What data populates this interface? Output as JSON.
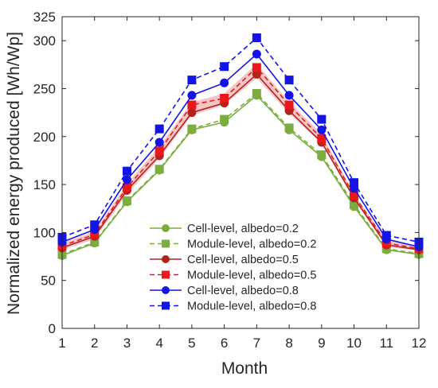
{
  "chart_data": {
    "type": "line",
    "title": "",
    "xlabel": "Month",
    "ylabel": "Normalized energy produced [Wh/Wp]",
    "x": [
      1,
      2,
      3,
      4,
      5,
      6,
      7,
      8,
      9,
      10,
      11,
      12
    ],
    "xlim": [
      1,
      12
    ],
    "ylim": [
      0,
      325
    ],
    "yticks": [
      0,
      50,
      100,
      150,
      200,
      250,
      300,
      325
    ],
    "grid": false,
    "legend_position": "bottom-right",
    "band": {
      "color": "#f4c7c7",
      "lower": [
        82,
        93,
        140,
        177,
        222,
        233,
        261,
        224,
        193,
        134,
        85,
        81
      ],
      "upper": [
        89,
        101,
        151,
        190,
        236,
        245,
        276,
        236,
        203,
        140,
        92,
        85
      ]
    },
    "series": [
      {
        "name": "Cell-level, albedo=0.2",
        "color": "#7cad3f",
        "line": "solid",
        "marker": "circle",
        "values": [
          76,
          89,
          132,
          165,
          207,
          215,
          243,
          207,
          179,
          127,
          82,
          77
        ]
      },
      {
        "name": "Module-level, albedo=0.2",
        "color": "#7cad3f",
        "line": "dashed",
        "marker": "square",
        "values": [
          77,
          90,
          133,
          166,
          208,
          218,
          245,
          209,
          181,
          129,
          83,
          78
        ]
      },
      {
        "name": "Cell-level, albedo=0.5",
        "color": "#b4221e",
        "line": "solid",
        "marker": "circle",
        "values": [
          84,
          96,
          144,
          180,
          225,
          235,
          265,
          227,
          194,
          136,
          87,
          82
        ]
      },
      {
        "name": "Module-level, albedo=0.5",
        "color": "#e8181b",
        "line": "dashed",
        "marker": "square",
        "values": [
          86,
          98,
          147,
          185,
          233,
          240,
          272,
          233,
          198,
          139,
          89,
          83
        ]
      },
      {
        "name": "Cell-level, albedo=0.8",
        "color": "#1414e6",
        "line": "solid",
        "marker": "circle",
        "values": [
          90,
          103,
          155,
          194,
          243,
          256,
          286,
          243,
          207,
          146,
          93,
          85
        ]
      },
      {
        "name": "Module-level, albedo=0.8",
        "color": "#1414e6",
        "line": "dashed",
        "marker": "square",
        "values": [
          95,
          108,
          164,
          208,
          259,
          273,
          303,
          259,
          218,
          152,
          97,
          90
        ]
      }
    ]
  }
}
